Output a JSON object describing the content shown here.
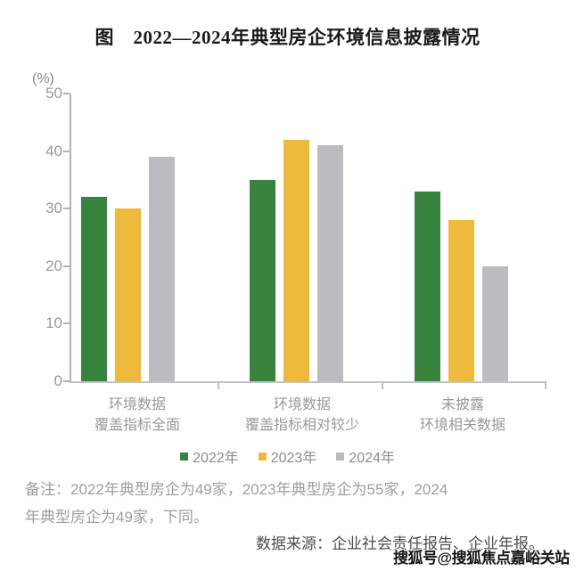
{
  "title": "图　2022—2024年典型房企环境信息披露情况",
  "chart_data": {
    "type": "bar",
    "unit_label": "(%)",
    "categories": [
      [
        "环境数据",
        "覆盖指标全面"
      ],
      [
        "环境数据",
        "覆盖指标相对较少"
      ],
      [
        "未披露",
        "环境相关数据"
      ]
    ],
    "series": [
      {
        "name": "2022年",
        "color": "#38843F",
        "values": [
          32,
          35,
          33
        ]
      },
      {
        "name": "2023年",
        "color": "#EEBA3C",
        "values": [
          30,
          42,
          28
        ]
      },
      {
        "name": "2024年",
        "color": "#BCBCC0",
        "values": [
          39,
          41,
          20
        ]
      }
    ],
    "ylim": [
      0,
      50
    ],
    "yticks": [
      0,
      10,
      20,
      30,
      40,
      50
    ],
    "grid": false,
    "legend_position": "bottom"
  },
  "note": {
    "lines": [
      "备注：2022年典型房企为49家，2023年典型房企为55家，2024",
      "年典型房企为49家，下同。"
    ]
  },
  "source": "数据来源：企业社会责任报告、企业年报。",
  "watermark": "搜狐号@搜狐焦点嘉峪关站",
  "colors": {
    "axis": "#b3b3b3",
    "tick_label": "#999999",
    "title": "#1a1a1a",
    "note": "#9e9e9e",
    "source": "#4d4d4d",
    "watermark": "#141414"
  }
}
